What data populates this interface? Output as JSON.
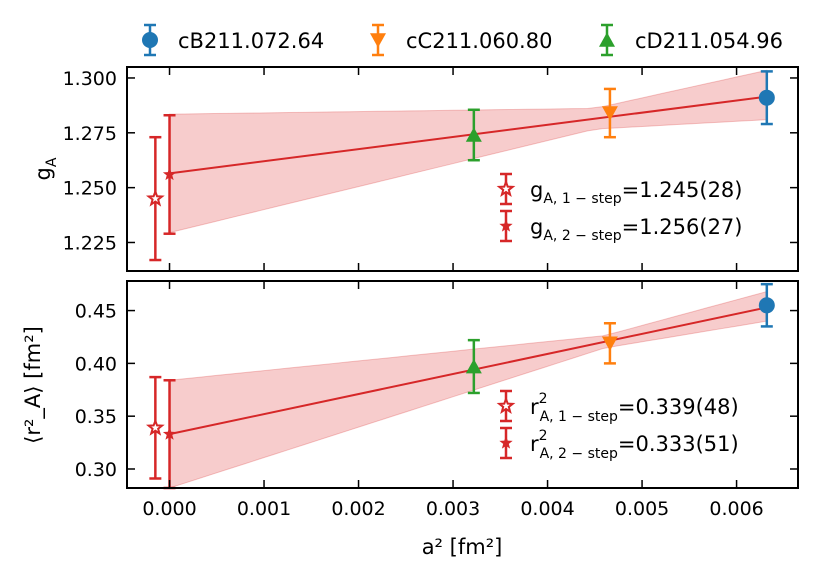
{
  "chart_data": [
    {
      "type": "scatter",
      "panel": "top",
      "ylabel": "g",
      "ylabel_sub": "A",
      "xlim": [
        -0.00045,
        0.00665
      ],
      "ylim": [
        1.212,
        1.305
      ],
      "yticks": [
        1.225,
        1.25,
        1.275,
        1.3
      ],
      "ytick_labels": [
        "1.225",
        "1.250",
        "1.275",
        "1.300"
      ],
      "ensembles": [
        {
          "name": "cB211.072.64",
          "a2": 0.00632,
          "y": 1.291,
          "err": 0.012,
          "color": "#1f77b4",
          "marker": "circle"
        },
        {
          "name": "cC211.060.80",
          "a2": 0.00466,
          "y": 1.284,
          "err": 0.011,
          "color": "#ff7f0e",
          "marker": "triangle-down"
        },
        {
          "name": "cD211.054.96",
          "a2": 0.00322,
          "y": 1.274,
          "err": 0.0115,
          "color": "#2ca02c",
          "marker": "triangle-up"
        }
      ],
      "continuum": [
        {
          "label_main": "g",
          "label_sub": "A, 1 − step",
          "label_value": "=1.245(28)",
          "a2": -0.00015,
          "y": 1.245,
          "err": 0.028,
          "marker": "star-open"
        },
        {
          "label_main": "g",
          "label_sub": "A, 2 − step",
          "label_value": "=1.256(27)",
          "a2": 0.0,
          "y": 1.256,
          "err": 0.027,
          "marker": "star-filled"
        }
      ],
      "fit": {
        "x0": 0.0,
        "y0": 1.2565,
        "x1": 0.00632,
        "y1": 1.2915,
        "band_start": [
          1.2295,
          1.2835
        ],
        "band_end": [
          1.281,
          1.3035
        ],
        "band_pivot_x": 0.0045,
        "color": "#d62728"
      }
    },
    {
      "type": "scatter",
      "panel": "bottom",
      "ylabel": "⟨r²_A⟩ [fm²]",
      "xlabel": "a² [fm²]",
      "xlim": [
        -0.00045,
        0.00665
      ],
      "ylim": [
        0.282,
        0.478
      ],
      "yticks": [
        0.3,
        0.35,
        0.4,
        0.45
      ],
      "ytick_labels": [
        "0.30",
        "0.35",
        "0.40",
        "0.45"
      ],
      "xticks": [
        0.0,
        0.001,
        0.002,
        0.003,
        0.004,
        0.005,
        0.006
      ],
      "xtick_labels": [
        "0.000",
        "0.001",
        "0.002",
        "0.003",
        "0.004",
        "0.005",
        "0.006"
      ],
      "ensembles": [
        {
          "name": "cB211.072.64",
          "a2": 0.00632,
          "y": 0.455,
          "err": 0.02,
          "color": "#1f77b4",
          "marker": "circle"
        },
        {
          "name": "cC211.060.80",
          "a2": 0.00466,
          "y": 0.419,
          "err": 0.019,
          "color": "#ff7f0e",
          "marker": "triangle-down"
        },
        {
          "name": "cD211.054.96",
          "a2": 0.00322,
          "y": 0.397,
          "err": 0.025,
          "color": "#2ca02c",
          "marker": "triangle-up"
        }
      ],
      "continuum": [
        {
          "label_main": "r",
          "label_sup": "2",
          "label_sub": "A, 1 − step",
          "label_value": "=0.339(48)",
          "a2": -0.00015,
          "y": 0.339,
          "err": 0.048,
          "marker": "star-open"
        },
        {
          "label_main": "r",
          "label_sup": "2",
          "label_sub": "A, 2 − step",
          "label_value": "=0.333(51)",
          "a2": 0.0,
          "y": 0.333,
          "err": 0.051,
          "marker": "star-filled"
        }
      ],
      "fit": {
        "x0": 0.0,
        "y0": 0.333,
        "x1": 0.00632,
        "y1": 0.453,
        "band_start": [
          0.282,
          0.384
        ],
        "band_end": [
          0.44,
          0.468
        ],
        "band_pivot_x": 0.0046,
        "color": "#d62728"
      }
    }
  ],
  "legend": [
    {
      "name": "cB211.072.64",
      "color": "#1f77b4",
      "marker": "circle"
    },
    {
      "name": "cC211.060.80",
      "color": "#ff7f0e",
      "marker": "triangle-down"
    },
    {
      "name": "cD211.054.96",
      "color": "#2ca02c",
      "marker": "triangle-up"
    }
  ],
  "colors": {
    "fit": "#d62728",
    "band": "#f4b6b6"
  }
}
